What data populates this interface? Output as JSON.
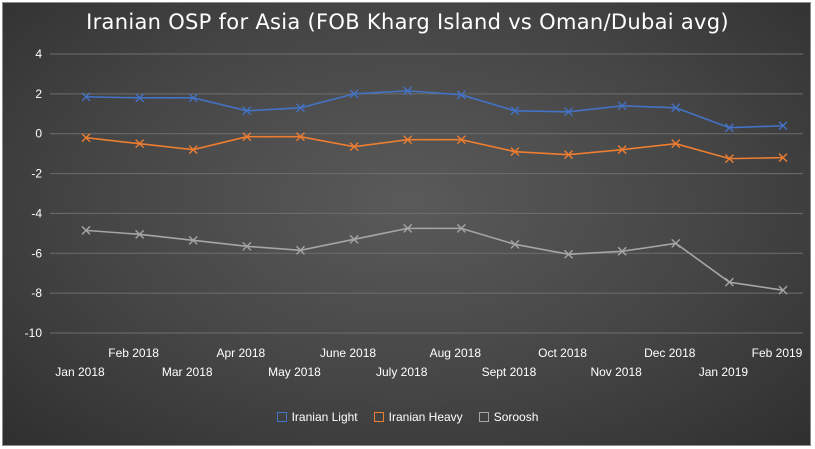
{
  "chart_data": {
    "type": "line",
    "title": "Iranian OSP for Asia (FOB Kharg Island vs Oman/Dubai avg)",
    "categories": [
      "Jan 2018",
      "Feb 2018",
      "Mar 2018",
      "Apr 2018",
      "May 2018",
      "June 2018",
      "July 2018",
      "Aug 2018",
      "Sept 2018",
      "Oct 2018",
      "Nov 2018",
      "Dec 2018",
      "Jan 2019",
      "Feb 2019"
    ],
    "ylim": [
      -10,
      4
    ],
    "yticks": [
      "4",
      "2",
      "0",
      "-2",
      "-4",
      "-6",
      "-8",
      "-10"
    ],
    "grid": true,
    "legend_position": "bottom",
    "series": [
      {
        "name": "Iranian Light",
        "color": "#4472c4",
        "values": [
          1.85,
          1.8,
          1.8,
          1.15,
          1.3,
          2.0,
          2.15,
          1.95,
          1.15,
          1.1,
          1.4,
          1.3,
          0.3,
          0.4
        ]
      },
      {
        "name": "Iranian Heavy",
        "color": "#ed7d31",
        "values": [
          -0.2,
          -0.5,
          -0.8,
          -0.15,
          -0.15,
          -0.65,
          -0.3,
          -0.3,
          -0.9,
          -1.05,
          -0.8,
          -0.5,
          -1.25,
          -1.2
        ]
      },
      {
        "name": "Soroosh",
        "color": "#a5a5a5",
        "values": [
          -4.85,
          -5.05,
          -5.35,
          -5.65,
          -5.85,
          -5.3,
          -4.75,
          -4.75,
          -5.55,
          -6.05,
          -5.9,
          -5.5,
          -7.45,
          -7.85
        ]
      }
    ]
  }
}
